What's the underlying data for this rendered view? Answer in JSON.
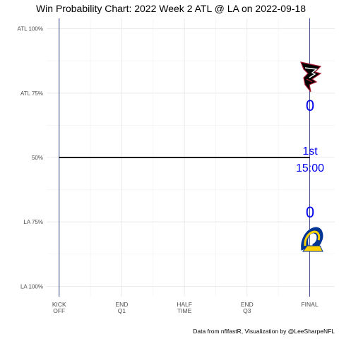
{
  "chart_data": {
    "type": "line",
    "title": "Win Probability Chart: 2022 Week 2 ATL @ LA on 2022-09-18",
    "caption": "Data from nflfastR, Visualization by @LeeSharpeNFL",
    "y_ticks": [
      {
        "value": 1.0,
        "label": "ATL 100%"
      },
      {
        "value": 0.75,
        "label": "ATL 75%"
      },
      {
        "value": 0.5,
        "label": "50%"
      },
      {
        "value": 0.25,
        "label": "LA 75%"
      },
      {
        "value": 0.0,
        "label": "LA 100%"
      }
    ],
    "x_ticks": [
      {
        "value": 0,
        "line1": "KICK",
        "line2": "OFF"
      },
      {
        "value": 15,
        "line1": "END",
        "line2": "Q1"
      },
      {
        "value": 30,
        "line1": "HALF",
        "line2": "TIME"
      },
      {
        "value": 45,
        "line1": "END",
        "line2": "Q3"
      },
      {
        "value": 60,
        "line1": "FINAL",
        "line2": ""
      }
    ],
    "xlim": [
      -3,
      66
    ],
    "ylim": [
      -0.04,
      1.04
    ],
    "series": [
      {
        "x": [
          0,
          60
        ],
        "y": [
          0.5,
          0.5
        ]
      }
    ],
    "grid": true,
    "away": {
      "team": "ATL",
      "score": "0",
      "logo": "falcons-logo"
    },
    "home": {
      "team": "LA",
      "score": "0",
      "logo": "rams-logo"
    },
    "game_clock": {
      "quarter": "1st",
      "time": "15:00"
    }
  }
}
